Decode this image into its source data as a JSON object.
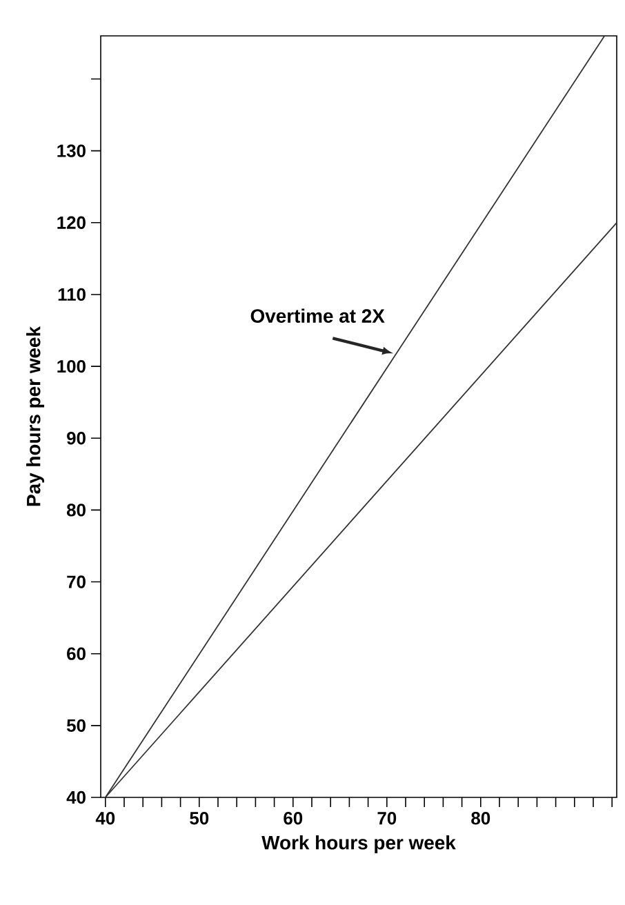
{
  "chart_data": {
    "type": "line",
    "xlabel": "Work hours per week",
    "ylabel": "Pay hours per week",
    "xlim": [
      39.5,
      94.5
    ],
    "ylim": [
      40,
      146
    ],
    "xticks": [
      40,
      {
        "value": 42,
        "label": null
      },
      {
        "value": 44,
        "label": null
      },
      {
        "value": 46,
        "label": null
      },
      {
        "value": 48,
        "label": null
      },
      50,
      {
        "value": 52,
        "label": null
      },
      {
        "value": 54,
        "label": null
      },
      {
        "value": 56,
        "label": null
      },
      {
        "value": 58,
        "label": null
      },
      60,
      {
        "value": 62,
        "label": null
      },
      {
        "value": 64,
        "label": null
      },
      {
        "value": 66,
        "label": null
      },
      {
        "value": 68,
        "label": null
      },
      70,
      {
        "value": 72,
        "label": null
      },
      {
        "value": 74,
        "label": null
      },
      {
        "value": 76,
        "label": null
      },
      {
        "value": 78,
        "label": null
      },
      80,
      {
        "value": 82,
        "label": null
      },
      {
        "value": 84,
        "label": null
      },
      {
        "value": 86,
        "label": null
      },
      {
        "value": 88,
        "label": null
      },
      {
        "value": 90,
        "label": null
      },
      {
        "value": 92,
        "label": null
      },
      {
        "value": 94,
        "label": null
      }
    ],
    "yticks": [
      40,
      50,
      60,
      70,
      80,
      90,
      100,
      110,
      120,
      130,
      {
        "value": 140,
        "label": null
      }
    ],
    "series": [
      {
        "color": "#333333",
        "x": [
          40,
          93.2
        ],
        "values": [
          40,
          146
        ]
      },
      {
        "color": "#333333",
        "x": [
          40,
          94.5
        ],
        "values": [
          40,
          120
        ]
      }
    ],
    "annotations": [
      {
        "text": "Overtime at 2X",
        "x": 70.7,
        "y": 101.8
      }
    ],
    "grid": false
  }
}
